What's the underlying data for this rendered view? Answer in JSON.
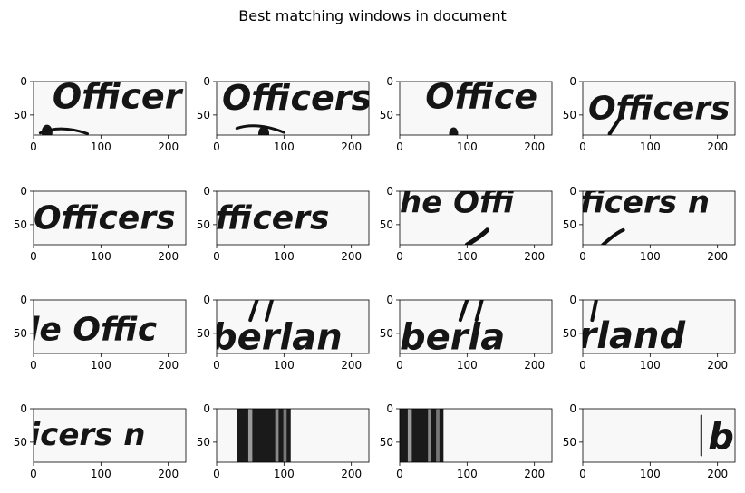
{
  "title": "Best matching windows in document",
  "chart_data": {
    "type": "image-grid",
    "title": "Best matching windows in document",
    "rows": 4,
    "cols": 4,
    "xlim": [
      0,
      226
    ],
    "ylim": [
      80,
      0
    ],
    "xticks": [
      0,
      100,
      200
    ],
    "yticks": [
      0,
      50
    ],
    "panels": [
      {
        "content": "Officer"
      },
      {
        "content": "Officers"
      },
      {
        "content": "Office"
      },
      {
        "content": "officers"
      },
      {
        "content": "Officers"
      },
      {
        "content": "fficers"
      },
      {
        "content": "he Offi"
      },
      {
        "content": "ficers n"
      },
      {
        "content": "le Offic"
      },
      {
        "content": "berlan"
      },
      {
        "content": "berla"
      },
      {
        "content": "rland"
      },
      {
        "content": "icers n"
      },
      {
        "content": "dark-bars-1"
      },
      {
        "content": "dark-bars-2"
      },
      {
        "content": "b"
      }
    ]
  }
}
